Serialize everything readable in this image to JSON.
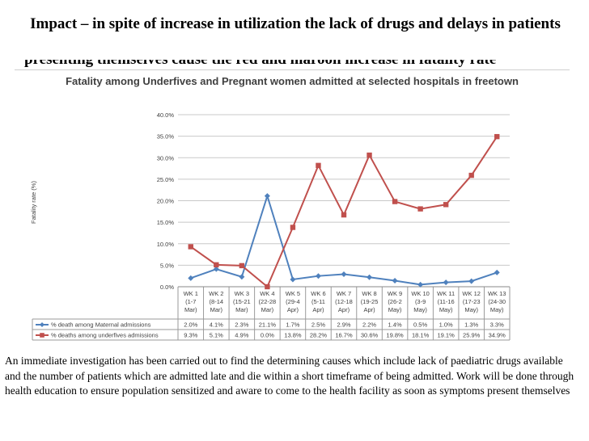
{
  "slide": {
    "title": "Impact – in spite of increase in utilization the lack of drugs and delays in patients",
    "subtitle_fragment": "presenting themselves cause the red and maroon increase in fatality rate",
    "body": "An immediate investigation has been carried out to find the determining causes which include lack of paediatric drugs available and the number of patients which are admitted late and die within a short timeframe of being admitted. Work will be done through health education to ensure population sensitized and aware to come to the health facility as soon as symptoms present themselves"
  },
  "chart_data": {
    "type": "line",
    "title": "Fatality among Underfives and Pregnant women admitted at selected hospitals in freetown",
    "ylabel": "Fatality rate (%)",
    "xlabel": "",
    "ylim": [
      0,
      40
    ],
    "yticks": [
      "0.0%",
      "5.0%",
      "10.0%",
      "15.0%",
      "20.0%",
      "25.0%",
      "30.0%",
      "35.0%",
      "40.0%"
    ],
    "grid": true,
    "legend": "bottom-table",
    "categories": [
      [
        "WK 1",
        "(1-7",
        "Mar)"
      ],
      [
        "WK 2",
        "(8-14",
        "Mar)"
      ],
      [
        "WK 3",
        "(15-21",
        "Mar)"
      ],
      [
        "WK 4",
        "(22-28",
        "Mar)"
      ],
      [
        "WK 5",
        "(29-4",
        "Apr)"
      ],
      [
        "WK 6",
        "(5-11",
        "Apr)"
      ],
      [
        "WK 7",
        "(12-18",
        "Apr)"
      ],
      [
        "WK 8",
        "(19-25",
        "Apr)"
      ],
      [
        "WK 9",
        "(26-2",
        "May)"
      ],
      [
        "WK 10",
        "(3-9",
        "May)"
      ],
      [
        "WK 11",
        "(11-16",
        "May)"
      ],
      [
        "WK 12",
        "(17-23",
        "May)"
      ],
      [
        "WK 13",
        "(24-30",
        "May)"
      ]
    ],
    "series": [
      {
        "name": "% death among Maternal admissions",
        "color": "#4f81bd",
        "marker": "diamond",
        "values": [
          2.0,
          4.1,
          2.3,
          21.1,
          1.7,
          2.5,
          2.9,
          2.2,
          1.4,
          0.5,
          1.0,
          1.3,
          3.3
        ],
        "labels": [
          "2.0%",
          "4.1%",
          "2.3%",
          "21.1%",
          "1.7%",
          "2.5%",
          "2.9%",
          "2.2%",
          "1.4%",
          "0.5%",
          "1.0%",
          "1.3%",
          "3.3%"
        ]
      },
      {
        "name": "% deaths among underfives admissions",
        "color": "#c0504d",
        "marker": "square",
        "values": [
          9.3,
          5.1,
          4.9,
          0.0,
          13.8,
          28.2,
          16.7,
          30.6,
          19.8,
          18.1,
          19.1,
          25.9,
          34.9
        ],
        "labels": [
          "9.3%",
          "5.1%",
          "4.9%",
          "0.0%",
          "13.8%",
          "28.2%",
          "16.7%",
          "30.6%",
          "19.8%",
          "18.1%",
          "19.1%",
          "25.9%",
          "34.9%"
        ]
      }
    ]
  }
}
